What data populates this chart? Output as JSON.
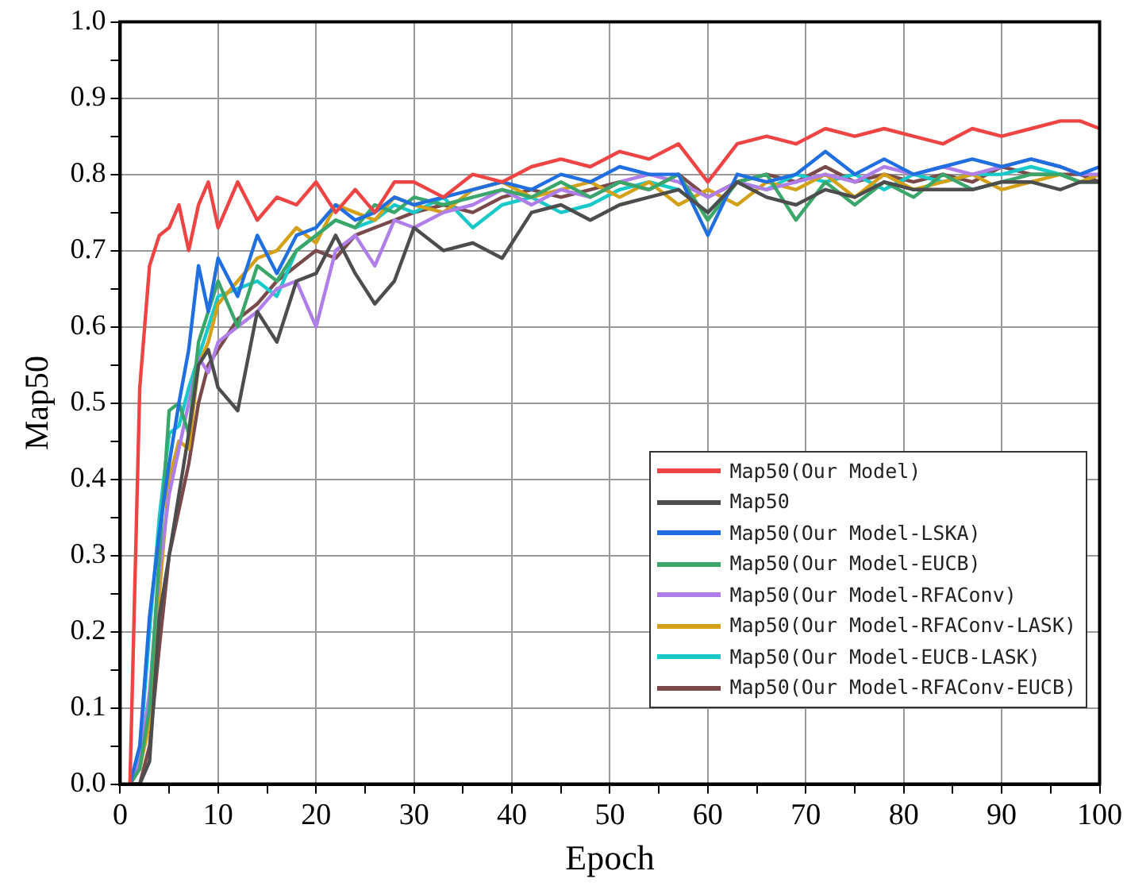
{
  "chart_data": {
    "type": "line",
    "xlabel": "Epoch",
    "ylabel": "Map50",
    "x": [
      1,
      2,
      3,
      4,
      5,
      6,
      7,
      8,
      9,
      10,
      12,
      14,
      16,
      18,
      20,
      22,
      24,
      26,
      28,
      30,
      33,
      36,
      39,
      42,
      45,
      48,
      51,
      54,
      57,
      60,
      63,
      66,
      69,
      72,
      75,
      78,
      81,
      84,
      87,
      90,
      93,
      96,
      98,
      100
    ],
    "xlim": [
      0,
      100
    ],
    "xticks": [
      0,
      {
        "value": 5,
        "label": null
      },
      10,
      {
        "value": 15,
        "label": null
      },
      20,
      {
        "value": 25,
        "label": null
      },
      30,
      {
        "value": 35,
        "label": null
      },
      40,
      {
        "value": 45,
        "label": null
      },
      50,
      {
        "value": 55,
        "label": null
      },
      60,
      {
        "value": 65,
        "label": null
      },
      70,
      {
        "value": 75,
        "label": null
      },
      80,
      {
        "value": 85,
        "label": null
      },
      90,
      {
        "value": 95,
        "label": null
      },
      100
    ],
    "ylim": [
      0,
      1
    ],
    "yticks": [
      {
        "value": 0,
        "label": "0.0"
      },
      {
        "value": 0.05,
        "label": null
      },
      0.1,
      {
        "value": 0.15,
        "label": null
      },
      0.2,
      {
        "value": 0.25,
        "label": null
      },
      0.3,
      {
        "value": 0.35,
        "label": null
      },
      0.4,
      {
        "value": 0.45,
        "label": null
      },
      0.5,
      {
        "value": 0.55,
        "label": null
      },
      0.6,
      {
        "value": 0.65,
        "label": null
      },
      0.7,
      {
        "value": 0.75,
        "label": null
      },
      0.8,
      {
        "value": 0.85,
        "label": null
      },
      0.9,
      {
        "value": 0.95,
        "label": null
      },
      {
        "value": 1,
        "label": "1.0"
      }
    ],
    "grid": true,
    "legend": "bottom right",
    "marker": "none",
    "line_style": "solid",
    "series": [
      {
        "name": "Map50(Our Model)",
        "color": "#ef4444",
        "values": [
          0,
          0.52,
          0.68,
          0.72,
          0.73,
          0.76,
          0.7,
          0.76,
          0.79,
          0.73,
          0.79,
          0.74,
          0.77,
          0.76,
          0.79,
          0.75,
          0.78,
          0.75,
          0.79,
          0.79,
          0.77,
          0.8,
          0.79,
          0.81,
          0.82,
          0.81,
          0.83,
          0.82,
          0.84,
          0.79,
          0.84,
          0.85,
          0.84,
          0.86,
          0.85,
          0.86,
          0.85,
          0.84,
          0.86,
          0.85,
          0.86,
          0.87,
          0.87,
          0.86
        ]
      },
      {
        "name": "Map50",
        "color": "#4d4d4d",
        "values": [
          0,
          0,
          0.03,
          0.22,
          0.3,
          0.38,
          0.46,
          0.55,
          0.57,
          0.52,
          0.49,
          0.62,
          0.58,
          0.66,
          0.67,
          0.72,
          0.67,
          0.63,
          0.66,
          0.73,
          0.7,
          0.71,
          0.69,
          0.75,
          0.76,
          0.74,
          0.76,
          0.77,
          0.78,
          0.75,
          0.79,
          0.77,
          0.76,
          0.78,
          0.77,
          0.79,
          0.78,
          0.78,
          0.78,
          0.79,
          0.79,
          0.78,
          0.79,
          0.79
        ]
      },
      {
        "name": "Map50(Our Model-LSKA)",
        "color": "#1f6fe0",
        "values": [
          0,
          0.05,
          0.22,
          0.33,
          0.42,
          0.5,
          0.57,
          0.68,
          0.62,
          0.69,
          0.64,
          0.72,
          0.67,
          0.72,
          0.73,
          0.76,
          0.74,
          0.75,
          0.77,
          0.76,
          0.77,
          0.78,
          0.79,
          0.78,
          0.8,
          0.79,
          0.81,
          0.8,
          0.8,
          0.72,
          0.8,
          0.79,
          0.8,
          0.83,
          0.8,
          0.82,
          0.8,
          0.81,
          0.82,
          0.81,
          0.82,
          0.81,
          0.8,
          0.81
        ]
      },
      {
        "name": "Map50(Our Model-EUCB)",
        "color": "#3aa66a",
        "values": [
          0,
          0.02,
          0.1,
          0.3,
          0.49,
          0.5,
          0.46,
          0.58,
          0.62,
          0.66,
          0.6,
          0.68,
          0.66,
          0.7,
          0.72,
          0.74,
          0.73,
          0.76,
          0.75,
          0.77,
          0.76,
          0.77,
          0.78,
          0.77,
          0.79,
          0.77,
          0.79,
          0.78,
          0.8,
          0.74,
          0.79,
          0.8,
          0.74,
          0.79,
          0.76,
          0.79,
          0.77,
          0.8,
          0.78,
          0.79,
          0.8,
          0.8,
          0.79,
          0.79
        ]
      },
      {
        "name": "Map50(Our Model-RFAConv)",
        "color": "#b07ee8",
        "values": [
          0,
          0.03,
          0.12,
          0.28,
          0.38,
          0.44,
          0.5,
          0.56,
          0.54,
          0.58,
          0.6,
          0.62,
          0.65,
          0.66,
          0.6,
          0.7,
          0.72,
          0.68,
          0.74,
          0.73,
          0.75,
          0.76,
          0.78,
          0.76,
          0.78,
          0.77,
          0.79,
          0.8,
          0.79,
          0.77,
          0.79,
          0.78,
          0.79,
          0.8,
          0.79,
          0.81,
          0.8,
          0.81,
          0.8,
          0.81,
          0.82,
          0.81,
          0.8,
          0.8
        ]
      },
      {
        "name": "Map50(Our Model-RFAConv-LASK)",
        "color": "#d4a017",
        "values": [
          0,
          0.02,
          0.08,
          0.25,
          0.4,
          0.45,
          0.44,
          0.55,
          0.58,
          0.63,
          0.66,
          0.69,
          0.7,
          0.73,
          0.71,
          0.76,
          0.75,
          0.74,
          0.77,
          0.76,
          0.75,
          0.78,
          0.79,
          0.77,
          0.78,
          0.79,
          0.77,
          0.79,
          0.76,
          0.78,
          0.76,
          0.79,
          0.78,
          0.8,
          0.77,
          0.8,
          0.78,
          0.79,
          0.8,
          0.78,
          0.79,
          0.8,
          0.79,
          0.8
        ]
      },
      {
        "name": "Map50(Our Model-EUCB-LASK)",
        "color": "#17c9c9",
        "values": [
          0,
          0.04,
          0.2,
          0.35,
          0.46,
          0.47,
          0.52,
          0.56,
          0.6,
          0.64,
          0.65,
          0.66,
          0.64,
          0.7,
          0.72,
          0.74,
          0.73,
          0.74,
          0.76,
          0.75,
          0.77,
          0.73,
          0.76,
          0.77,
          0.75,
          0.76,
          0.78,
          0.79,
          0.78,
          0.75,
          0.79,
          0.78,
          0.8,
          0.79,
          0.8,
          0.78,
          0.8,
          0.79,
          0.8,
          0.8,
          0.81,
          0.8,
          0.79,
          0.8
        ]
      },
      {
        "name": "Map50(Our Model-RFAConv-EUCB)",
        "color": "#7a4a4a",
        "values": [
          0,
          0,
          0.05,
          0.18,
          0.3,
          0.36,
          0.42,
          0.5,
          0.55,
          0.57,
          0.61,
          0.63,
          0.66,
          0.68,
          0.7,
          0.69,
          0.72,
          0.73,
          0.74,
          0.75,
          0.76,
          0.75,
          0.77,
          0.78,
          0.77,
          0.78,
          0.79,
          0.78,
          0.8,
          0.77,
          0.79,
          0.8,
          0.79,
          0.81,
          0.79,
          0.8,
          0.79,
          0.8,
          0.79,
          0.81,
          0.8,
          0.8,
          0.8,
          0.79
        ]
      }
    ]
  }
}
